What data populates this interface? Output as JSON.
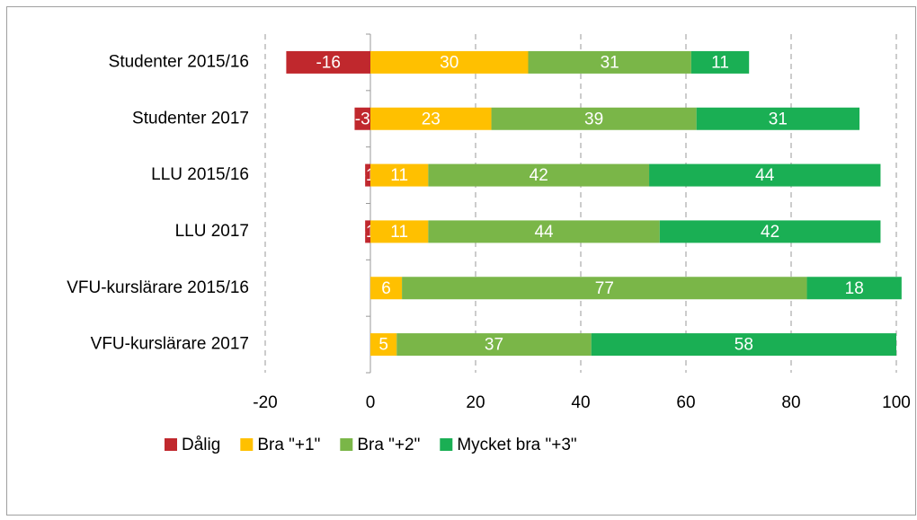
{
  "chart_data": {
    "type": "stacked-barh",
    "categories": [
      "Studenter 2015/16",
      "Studenter 2017",
      "LLU 2015/16",
      "LLU 2017",
      "VFU-kurslärare 2015/16",
      "VFU-kurslärare 2017"
    ],
    "series": [
      {
        "name": "Dålig",
        "color": "#c0282d",
        "values": [
          -16,
          -3,
          -1,
          -1,
          null,
          null
        ]
      },
      {
        "name": "Bra \"+1\"",
        "color": "#ffc000",
        "values": [
          30,
          23,
          11,
          11,
          6,
          5
        ]
      },
      {
        "name": "Bra \"+2\"",
        "color": "#7ab648",
        "values": [
          31,
          39,
          42,
          44,
          77,
          37
        ]
      },
      {
        "name": "Mycket bra \"+3\"",
        "color": "#1aaf54",
        "values": [
          11,
          31,
          44,
          42,
          18,
          58
        ]
      }
    ],
    "xlim": [
      -20,
      100
    ],
    "xticks": [
      -20,
      0,
      20,
      40,
      60,
      80,
      100
    ],
    "grid": true,
    "legend": "bottom"
  }
}
